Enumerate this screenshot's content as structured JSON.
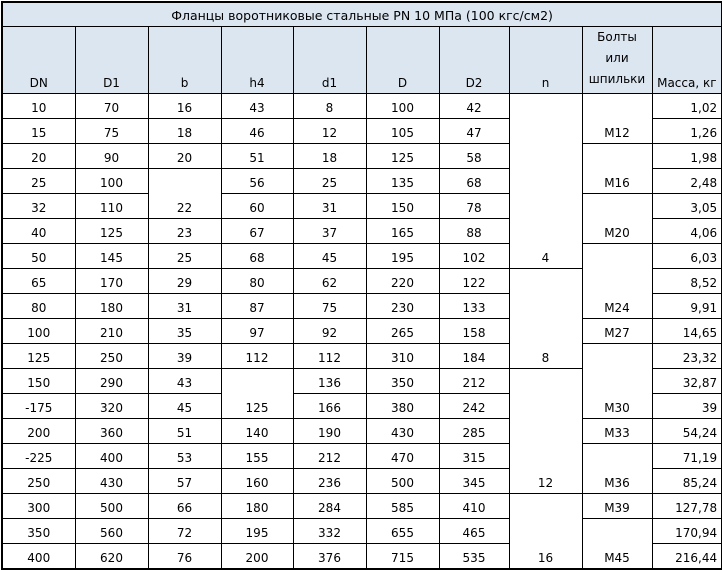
{
  "title": "Фланцы воротниковые стальные PN 10 МПа (100 кгс/см2)",
  "header_bg": "#dce6f1",
  "columns": [
    "DN",
    "D1",
    "b",
    "h4",
    "d1",
    "D",
    "D2",
    "n",
    "Болты или шпильки",
    "Масса, кг"
  ],
  "rows": [
    {
      "DN": "10",
      "D1": "70",
      "b": "16",
      "h4": "43",
      "d1": "8",
      "D": "100",
      "D2": "42",
      "mass": "1,02"
    },
    {
      "DN": "15",
      "D1": "75",
      "b": "18",
      "h4": "46",
      "d1": "12",
      "D": "105",
      "D2": "47",
      "mass": "1,26"
    },
    {
      "DN": "20",
      "D1": "90",
      "b": "20",
      "h4": "51",
      "d1": "18",
      "D": "125",
      "D2": "58",
      "mass": "1,98"
    },
    {
      "DN": "25",
      "D1": "100",
      "h4": "56",
      "d1": "25",
      "D": "135",
      "D2": "68",
      "mass": "2,48"
    },
    {
      "DN": "32",
      "D1": "110",
      "h4": "60",
      "d1": "31",
      "D": "150",
      "D2": "78",
      "mass": "3,05"
    },
    {
      "DN": "40",
      "D1": "125",
      "b": "23",
      "h4": "67",
      "d1": "37",
      "D": "165",
      "D2": "88",
      "mass": "4,06"
    },
    {
      "DN": "50",
      "D1": "145",
      "b": "25",
      "h4": "68",
      "d1": "45",
      "D": "195",
      "D2": "102",
      "mass": "6,03"
    },
    {
      "DN": "65",
      "D1": "170",
      "b": "29",
      "h4": "80",
      "d1": "62",
      "D": "220",
      "D2": "122",
      "mass": "8,52"
    },
    {
      "DN": "80",
      "D1": "180",
      "b": "31",
      "h4": "87",
      "d1": "75",
      "D": "230",
      "D2": "133",
      "mass": "9,91"
    },
    {
      "DN": "100",
      "D1": "210",
      "b": "35",
      "h4": "97",
      "d1": "92",
      "D": "265",
      "D2": "158",
      "mass": "14,65"
    },
    {
      "DN": "125",
      "D1": "250",
      "b": "39",
      "h4": "112",
      "d1": "112",
      "D": "310",
      "D2": "184",
      "mass": "23,32"
    },
    {
      "DN": "150",
      "D1": "290",
      "b": "43",
      "d1": "136",
      "D": "350",
      "D2": "212",
      "mass": "32,87"
    },
    {
      "DN": "-175",
      "D1": "320",
      "b": "45",
      "d1": "166",
      "D": "380",
      "D2": "242",
      "mass": "39"
    },
    {
      "DN": "200",
      "D1": "360",
      "b": "51",
      "h4": "140",
      "d1": "190",
      "D": "430",
      "D2": "285",
      "mass": "54,24"
    },
    {
      "DN": "-225",
      "D1": "400",
      "b": "53",
      "h4": "155",
      "d1": "212",
      "D": "470",
      "D2": "315",
      "mass": "71,19"
    },
    {
      "DN": "250",
      "D1": "430",
      "b": "57",
      "h4": "160",
      "d1": "236",
      "D": "500",
      "D2": "345",
      "mass": "85,24"
    },
    {
      "DN": "300",
      "D1": "500",
      "b": "66",
      "h4": "180",
      "d1": "284",
      "D": "585",
      "D2": "410",
      "mass": "127,78"
    },
    {
      "DN": "350",
      "D1": "560",
      "b": "72",
      "h4": "195",
      "d1": "332",
      "D": "655",
      "D2": "465",
      "mass": "170,94"
    },
    {
      "DN": "400",
      "D1": "620",
      "b": "76",
      "h4": "200",
      "d1": "376",
      "D": "715",
      "D2": "535",
      "mass": "216,44"
    }
  ],
  "merged": {
    "b": [
      {
        "start_row": 3,
        "rows": 2,
        "value": "22"
      }
    ],
    "h4": [
      {
        "start_row": 11,
        "rows": 2,
        "value": "125"
      }
    ],
    "n": [
      {
        "start_row": 0,
        "rows": 7,
        "value": "4"
      },
      {
        "start_row": 7,
        "rows": 4,
        "value": "8"
      },
      {
        "start_row": 11,
        "rows": 5,
        "value": "12"
      },
      {
        "start_row": 16,
        "rows": 3,
        "value": "16"
      }
    ],
    "bolts": [
      {
        "start_row": 0,
        "rows": 2,
        "value": "M12"
      },
      {
        "start_row": 2,
        "rows": 2,
        "value": "M16"
      },
      {
        "start_row": 4,
        "rows": 2,
        "value": "M20"
      },
      {
        "start_row": 6,
        "rows": 3,
        "value": "M24"
      },
      {
        "start_row": 9,
        "rows": 1,
        "value": "M27"
      },
      {
        "start_row": 10,
        "rows": 3,
        "value": "M30"
      },
      {
        "start_row": 13,
        "rows": 1,
        "value": "M33"
      },
      {
        "start_row": 14,
        "rows": 2,
        "value": "M36"
      },
      {
        "start_row": 16,
        "rows": 1,
        "value": "M39"
      },
      {
        "start_row": 17,
        "rows": 2,
        "value": "M45"
      }
    ]
  }
}
